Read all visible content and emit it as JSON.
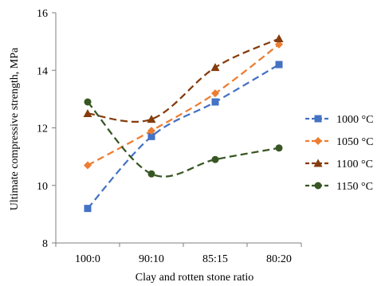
{
  "chart_data": {
    "type": "line",
    "title": "",
    "xlabel": "Clay and rotten stone ratio",
    "ylabel": "Ultimate compressive strength, MPa",
    "categories": [
      "100:0",
      "90:10",
      "85:15",
      "80:20"
    ],
    "ylim": [
      8,
      16
    ],
    "yticks": [
      "8",
      "10",
      "12",
      "14",
      "16"
    ],
    "grid": false,
    "legend_position": "right",
    "series": [
      {
        "name": "1000 °C",
        "values": [
          9.2,
          11.7,
          12.9,
          14.2
        ],
        "color": "#4472C4",
        "marker": "square",
        "dash": "dashed"
      },
      {
        "name": "1050 °C",
        "values": [
          10.7,
          11.9,
          13.2,
          14.9
        ],
        "color": "#ED7D31",
        "marker": "diamond",
        "dash": "dashed"
      },
      {
        "name": "1100 °C",
        "values": [
          12.5,
          12.3,
          14.1,
          15.1
        ],
        "color": "#843C0C",
        "marker": "triangle",
        "dash": "dashed"
      },
      {
        "name": "1150 °C",
        "values": [
          12.9,
          10.4,
          10.9,
          11.3
        ],
        "color": "#375623",
        "marker": "circle",
        "dash": "dashed"
      }
    ]
  }
}
